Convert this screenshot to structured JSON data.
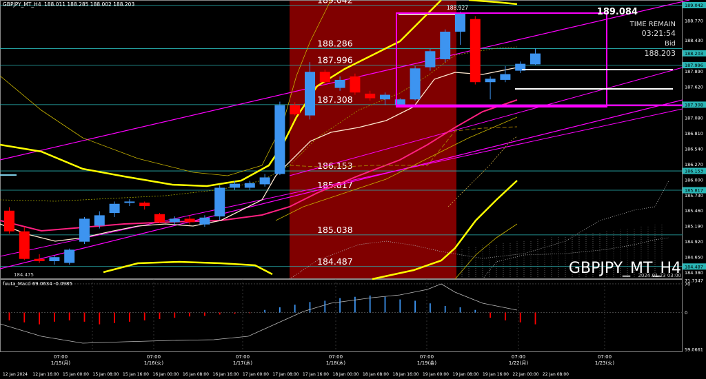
{
  "header": {
    "title": "GBPJPY_MT_H4",
    "ohlc": "188.011 188.285 188.002 188.203"
  },
  "watermark": "GBPJPY_MT_H4",
  "server_time": "2024.01.23 03:00",
  "info": {
    "high_label": "189.084",
    "time_remain_label": "TIME REMAIN",
    "time_remain": "03:21:54",
    "bid_label": "Bid",
    "bid": "188.203"
  },
  "level_labels": [
    {
      "text": "189.042",
      "price": 189.042
    },
    {
      "text": "188.927",
      "price": 188.927
    },
    {
      "text": "188.286",
      "price": 188.286
    },
    {
      "text": "187.996",
      "price": 187.996
    },
    {
      "text": "187.308",
      "price": 187.308
    },
    {
      "text": "186.153",
      "price": 186.153
    },
    {
      "text": "185.817",
      "price": 185.817
    },
    {
      "text": "185.038",
      "price": 185.038
    },
    {
      "text": "184.487",
      "price": 184.487
    }
  ],
  "price_axis": {
    "ticks": [
      "189.042",
      "188.770",
      "188.430",
      "188.203",
      "187.996",
      "187.890",
      "187.620",
      "187.308",
      "187.080",
      "186.810",
      "186.540",
      "186.270",
      "186.153",
      "186.000",
      "185.817",
      "185.730",
      "185.460",
      "185.190",
      "184.920",
      "184.650",
      "184.487",
      "184.380"
    ],
    "highlight_ticks": [
      "189.042",
      "188.286",
      "188.203",
      "187.996",
      "187.308",
      "186.153",
      "185.817",
      "185.038",
      "184.487"
    ],
    "range": [
      184.28,
      189.12
    ]
  },
  "macd_panel": {
    "label": "fuuta_Macd 69.0634 -0.0985",
    "ticks": [
      "71.7347",
      "70",
      "0",
      "59.0661"
    ],
    "range": [
      -95,
      80
    ]
  },
  "corner_label": "184.475",
  "time_axis": {
    "bottom_labels": [
      "12 Jan 2024",
      "12 Jan 16:00",
      "15 Jan 00:00",
      "15 Jan 08:00",
      "15 Jan 16:00",
      "16 Jan 00:00",
      "16 Jan 08:00",
      "16 Jan 16:00",
      "17 Jan 00:00",
      "17 Jan 08:00",
      "17 Jan 16:00",
      "18 Jan 00:00",
      "18 Jan 08:00",
      "18 Jan 16:00",
      "19 Jan 00:00",
      "19 Jan 08:00",
      "19 Jan 16:00",
      "22 Jan 00:00",
      "22 Jan 08:00"
    ],
    "day_labels": [
      {
        "time": "07:00",
        "date": "1/15(月)"
      },
      {
        "time": "07:00",
        "date": "1/16(火)"
      },
      {
        "time": "07:00",
        "date": "1/17(水)"
      },
      {
        "time": "07:00",
        "date": "1/18(木)"
      },
      {
        "time": "07:00",
        "date": "1/19(金)"
      },
      {
        "time": "07:00",
        "date": "1/22(月)"
      },
      {
        "time": "07:00",
        "date": "1/23(火)"
      }
    ]
  },
  "colors": {
    "bull": "#3d94f0",
    "bear": "#ff0000",
    "highlight_band": "#800000",
    "level_line": "#2ab7b7",
    "bollinger": "#ffff00",
    "trend": "#ff00ff",
    "ma_white": "#ffe9d0",
    "ma_pink": "#ff2080"
  },
  "chart_data": {
    "type": "candlestick",
    "timeframe": "H4",
    "symbol": "GBPJPY",
    "candles": [
      {
        "o": 185.46,
        "h": 185.52,
        "l": 185.06,
        "c": 185.1
      },
      {
        "o": 185.1,
        "h": 185.18,
        "l": 184.6,
        "c": 184.62
      },
      {
        "o": 184.62,
        "h": 184.7,
        "l": 184.55,
        "c": 184.58
      },
      {
        "o": 184.58,
        "h": 184.68,
        "l": 184.52,
        "c": 184.65
      },
      {
        "o": 184.55,
        "h": 184.8,
        "l": 184.52,
        "c": 184.78
      },
      {
        "o": 184.92,
        "h": 185.35,
        "l": 184.88,
        "c": 185.32
      },
      {
        "o": 185.2,
        "h": 185.45,
        "l": 185.15,
        "c": 185.38
      },
      {
        "o": 185.42,
        "h": 185.62,
        "l": 185.35,
        "c": 185.58
      },
      {
        "o": 185.6,
        "h": 185.66,
        "l": 185.54,
        "c": 185.62
      },
      {
        "o": 185.6,
        "h": 185.62,
        "l": 185.48,
        "c": 185.54
      },
      {
        "o": 185.4,
        "h": 185.42,
        "l": 185.24,
        "c": 185.26
      },
      {
        "o": 185.26,
        "h": 185.36,
        "l": 185.22,
        "c": 185.32
      },
      {
        "o": 185.32,
        "h": 185.38,
        "l": 185.22,
        "c": 185.26
      },
      {
        "o": 185.22,
        "h": 185.38,
        "l": 185.18,
        "c": 185.34
      },
      {
        "o": 185.36,
        "h": 185.9,
        "l": 185.3,
        "c": 185.86
      },
      {
        "o": 185.86,
        "h": 185.98,
        "l": 185.82,
        "c": 185.93
      },
      {
        "o": 185.86,
        "h": 185.98,
        "l": 185.82,
        "c": 185.94
      },
      {
        "o": 185.92,
        "h": 186.1,
        "l": 185.88,
        "c": 186.04
      },
      {
        "o": 186.1,
        "h": 187.36,
        "l": 186.08,
        "c": 187.3
      },
      {
        "o": 187.3,
        "h": 187.35,
        "l": 187.12,
        "c": 187.14
      },
      {
        "o": 187.12,
        "h": 188.05,
        "l": 187.05,
        "c": 187.88
      },
      {
        "o": 187.88,
        "h": 187.92,
        "l": 187.66,
        "c": 187.7
      },
      {
        "o": 187.6,
        "h": 187.8,
        "l": 187.55,
        "c": 187.74
      },
      {
        "o": 187.8,
        "h": 187.85,
        "l": 187.48,
        "c": 187.52
      },
      {
        "o": 187.5,
        "h": 187.55,
        "l": 187.38,
        "c": 187.42
      },
      {
        "o": 187.4,
        "h": 187.52,
        "l": 187.3,
        "c": 187.48
      },
      {
        "o": 187.3,
        "h": 187.42,
        "l": 187.28,
        "c": 187.4
      },
      {
        "o": 187.4,
        "h": 187.98,
        "l": 187.38,
        "c": 187.94
      },
      {
        "o": 187.96,
        "h": 188.28,
        "l": 187.9,
        "c": 188.24
      },
      {
        "o": 188.1,
        "h": 188.62,
        "l": 188.05,
        "c": 188.58
      },
      {
        "o": 188.58,
        "h": 188.93,
        "l": 188.35,
        "c": 188.9
      },
      {
        "o": 188.8,
        "h": 188.85,
        "l": 187.66,
        "c": 187.7
      },
      {
        "o": 187.7,
        "h": 187.8,
        "l": 187.4,
        "c": 187.76
      },
      {
        "o": 187.74,
        "h": 187.98,
        "l": 187.7,
        "c": 187.84
      },
      {
        "o": 187.9,
        "h": 188.06,
        "l": 187.86,
        "c": 188.02
      },
      {
        "o": 188.01,
        "h": 188.29,
        "l": 188.0,
        "c": 188.2
      }
    ],
    "ylim": [
      184.28,
      189.12
    ]
  }
}
